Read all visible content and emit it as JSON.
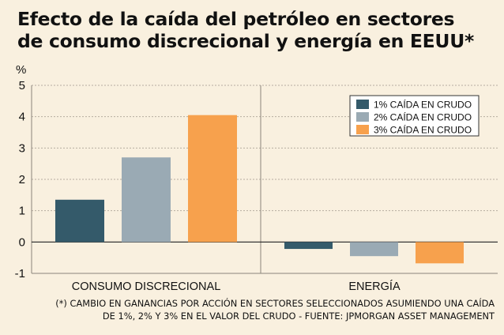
{
  "title": {
    "line1": "Efecto de la caída del petróleo en sectores",
    "line2": "de consumo discrecional y energía en EEUU*"
  },
  "unit_label": "%",
  "footnote": {
    "line1": "(*) CAMBIO EN GANANCIAS POR ACCIÓN EN SECTORES SELECCIONADOS ASUMIENDO UNA CAÍDA",
    "line2": "DE 1%, 2% Y 3% EN EL VALOR DEL CRUDO - FUENTE: JPMORGAN ASSET MANAGEMENT"
  },
  "colors": {
    "background": "#f9f0df",
    "gridline": "#b7ada0",
    "axis": "#222222"
  },
  "chart_data": {
    "type": "bar",
    "categories": [
      "CONSUMO DISCRECIONAL",
      "ENERGÍA"
    ],
    "series": [
      {
        "name": "1% CAÍDA EN CRUDO",
        "color": "#345a6a",
        "values": [
          1.35,
          -0.22
        ]
      },
      {
        "name": "2% CAÍDA EN CRUDO",
        "color": "#9aaab4",
        "values": [
          2.7,
          -0.45
        ]
      },
      {
        "name": "3% CAÍDA EN CRUDO",
        "color": "#f7a14d",
        "values": [
          4.05,
          -0.68
        ]
      }
    ],
    "ylim": [
      -1,
      5
    ],
    "yticks": [
      "-1",
      "0",
      "1",
      "2",
      "3",
      "4",
      "5"
    ],
    "grid": true,
    "legend": "top-right"
  }
}
